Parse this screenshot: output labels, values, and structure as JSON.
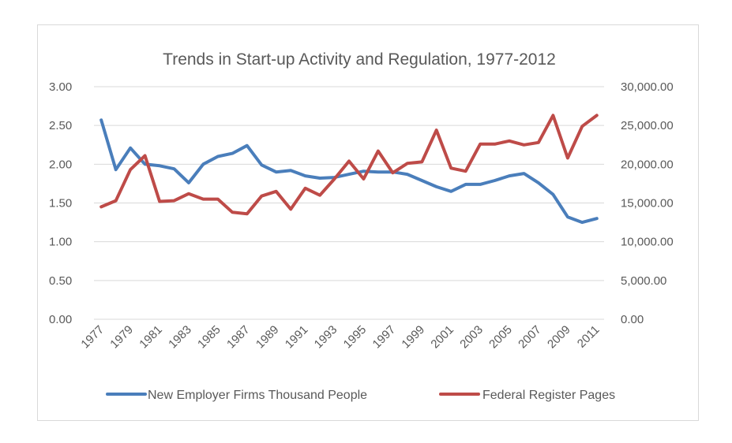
{
  "chart_data": {
    "type": "line",
    "title": "Trends in Start-up Activity and Regulation, 1977-2012",
    "x": [
      1977,
      1978,
      1979,
      1980,
      1981,
      1982,
      1983,
      1984,
      1985,
      1986,
      1987,
      1988,
      1989,
      1990,
      1991,
      1992,
      1993,
      1994,
      1995,
      1996,
      1997,
      1998,
      1999,
      2000,
      2001,
      2002,
      2003,
      2004,
      2005,
      2006,
      2007,
      2008,
      2009,
      2010,
      2011
    ],
    "x_tick_labels": [
      "1977",
      "1979",
      "1981",
      "1983",
      "1985",
      "1987",
      "1989",
      "1991",
      "1993",
      "1995",
      "1997",
      "1999",
      "2001",
      "2003",
      "2005",
      "2007",
      "2009",
      "2011"
    ],
    "y_left": {
      "range": [
        0,
        3
      ],
      "ticks": [
        0,
        0.5,
        1,
        1.5,
        2,
        2.5,
        3
      ],
      "tick_labels": [
        "0.00",
        "0.50",
        "1.00",
        "1.50",
        "2.00",
        "2.50",
        "3.00"
      ]
    },
    "y_right": {
      "range": [
        0,
        30000
      ],
      "ticks": [
        0,
        5000,
        10000,
        15000,
        20000,
        25000,
        30000
      ],
      "tick_labels": [
        "0.00",
        "5,000.00",
        "10,000.00",
        "15,000.00",
        "20,000.00",
        "25,000.00",
        "30,000.00"
      ]
    },
    "gridlines": true,
    "legend_position": "bottom",
    "series": [
      {
        "name": "New Employer Firms Thousand People",
        "axis": "left",
        "color": "#4a7ebb",
        "values": [
          2.57,
          1.93,
          2.21,
          2.0,
          1.98,
          1.94,
          1.76,
          2.0,
          2.1,
          2.14,
          2.24,
          1.99,
          1.9,
          1.92,
          1.85,
          1.82,
          1.83,
          1.87,
          1.91,
          1.9,
          1.9,
          1.87,
          1.79,
          1.71,
          1.65,
          1.74,
          1.74,
          1.79,
          1.85,
          1.88,
          1.76,
          1.61,
          1.32,
          1.25,
          1.3
        ]
      },
      {
        "name": "Federal Register Pages",
        "axis": "right",
        "color": "#be4b48",
        "values": [
          14500,
          15300,
          19300,
          21100,
          15200,
          15300,
          16200,
          15500,
          15500,
          13800,
          13600,
          15900,
          16500,
          14200,
          16900,
          16000,
          18100,
          20400,
          18100,
          21700,
          18900,
          20100,
          20300,
          24400,
          19500,
          19100,
          22600,
          22600,
          23000,
          22500,
          22800,
          26300,
          20800,
          24900,
          26300
        ]
      }
    ]
  }
}
